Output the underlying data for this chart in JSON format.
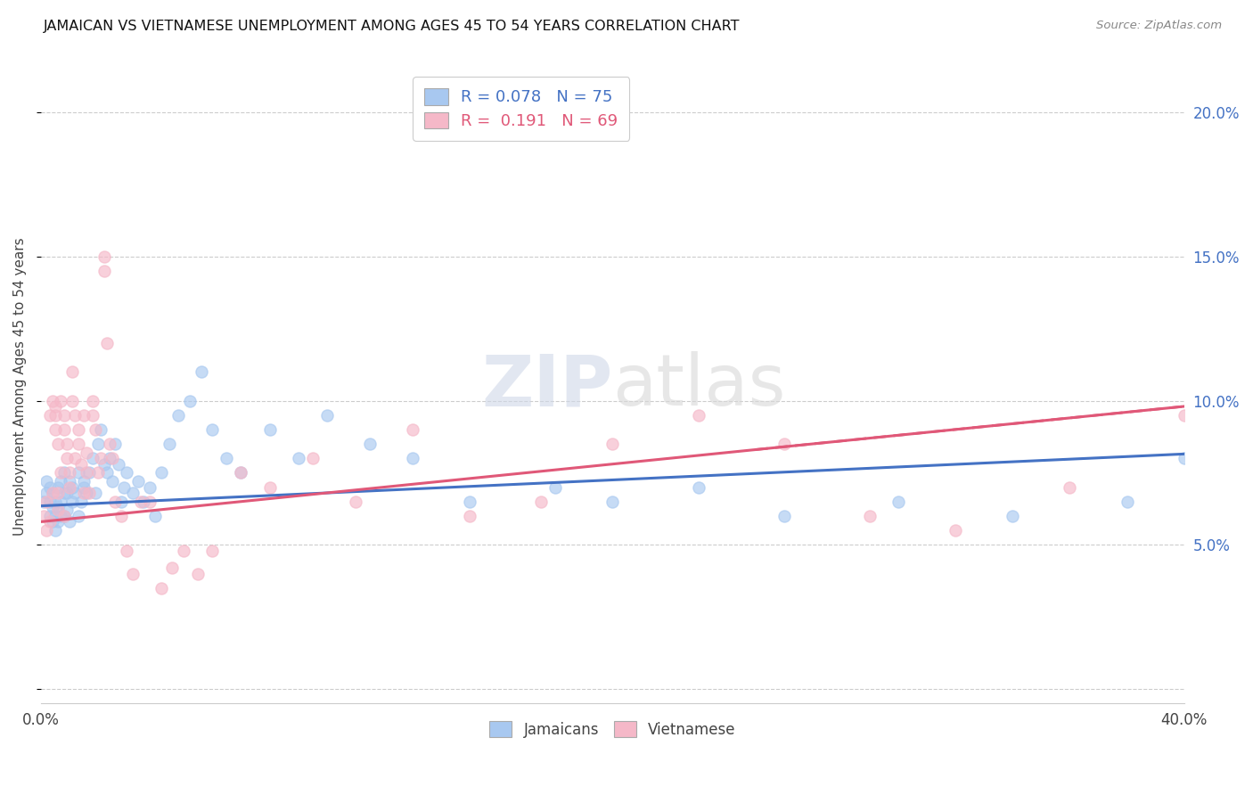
{
  "title": "JAMAICAN VS VIETNAMESE UNEMPLOYMENT AMONG AGES 45 TO 54 YEARS CORRELATION CHART",
  "source": "Source: ZipAtlas.com",
  "ylabel": "Unemployment Among Ages 45 to 54 years",
  "xlim": [
    0.0,
    0.4
  ],
  "ylim": [
    -0.005,
    0.215
  ],
  "xticks": [
    0.0,
    0.05,
    0.1,
    0.15,
    0.2,
    0.25,
    0.3,
    0.35,
    0.4
  ],
  "yticks": [
    0.0,
    0.05,
    0.1,
    0.15,
    0.2
  ],
  "jamaicans_color": "#a8c8f0",
  "vietnamese_color": "#f5b8c8",
  "jamaicans_line_color": "#4472c4",
  "vietnamese_line_color": "#e05878",
  "jamaicans_R": "0.078",
  "jamaicans_N": "75",
  "vietnamese_R": "0.191",
  "vietnamese_N": "69",
  "jamaicans_x": [
    0.001,
    0.002,
    0.002,
    0.003,
    0.003,
    0.003,
    0.004,
    0.004,
    0.004,
    0.005,
    0.005,
    0.005,
    0.006,
    0.006,
    0.006,
    0.007,
    0.007,
    0.007,
    0.008,
    0.008,
    0.008,
    0.009,
    0.009,
    0.01,
    0.01,
    0.011,
    0.011,
    0.012,
    0.013,
    0.013,
    0.014,
    0.015,
    0.015,
    0.016,
    0.017,
    0.018,
    0.019,
    0.02,
    0.021,
    0.022,
    0.023,
    0.024,
    0.025,
    0.026,
    0.027,
    0.028,
    0.029,
    0.03,
    0.032,
    0.034,
    0.036,
    0.038,
    0.04,
    0.042,
    0.045,
    0.048,
    0.052,
    0.056,
    0.06,
    0.065,
    0.07,
    0.08,
    0.09,
    0.1,
    0.115,
    0.13,
    0.15,
    0.18,
    0.2,
    0.23,
    0.26,
    0.3,
    0.34,
    0.38,
    0.4
  ],
  "jamaicans_y": [
    0.065,
    0.068,
    0.072,
    0.06,
    0.065,
    0.07,
    0.058,
    0.063,
    0.068,
    0.055,
    0.06,
    0.065,
    0.058,
    0.063,
    0.07,
    0.06,
    0.065,
    0.072,
    0.068,
    0.06,
    0.075,
    0.062,
    0.068,
    0.058,
    0.072,
    0.065,
    0.07,
    0.068,
    0.06,
    0.075,
    0.065,
    0.07,
    0.072,
    0.068,
    0.075,
    0.08,
    0.068,
    0.085,
    0.09,
    0.078,
    0.075,
    0.08,
    0.072,
    0.085,
    0.078,
    0.065,
    0.07,
    0.075,
    0.068,
    0.072,
    0.065,
    0.07,
    0.06,
    0.075,
    0.085,
    0.095,
    0.1,
    0.11,
    0.09,
    0.08,
    0.075,
    0.09,
    0.08,
    0.095,
    0.085,
    0.08,
    0.065,
    0.07,
    0.065,
    0.07,
    0.06,
    0.065,
    0.06,
    0.065,
    0.08
  ],
  "vietnamese_x": [
    0.001,
    0.002,
    0.002,
    0.003,
    0.003,
    0.004,
    0.004,
    0.005,
    0.005,
    0.005,
    0.006,
    0.006,
    0.006,
    0.007,
    0.007,
    0.008,
    0.008,
    0.008,
    0.009,
    0.009,
    0.01,
    0.01,
    0.011,
    0.011,
    0.012,
    0.012,
    0.013,
    0.013,
    0.014,
    0.015,
    0.015,
    0.016,
    0.016,
    0.017,
    0.018,
    0.018,
    0.019,
    0.02,
    0.021,
    0.022,
    0.022,
    0.023,
    0.024,
    0.025,
    0.026,
    0.028,
    0.03,
    0.032,
    0.035,
    0.038,
    0.042,
    0.046,
    0.05,
    0.055,
    0.06,
    0.07,
    0.08,
    0.095,
    0.11,
    0.13,
    0.15,
    0.175,
    0.2,
    0.23,
    0.26,
    0.29,
    0.32,
    0.36,
    0.4
  ],
  "vietnamese_y": [
    0.06,
    0.055,
    0.065,
    0.058,
    0.095,
    0.1,
    0.068,
    0.09,
    0.095,
    0.098,
    0.062,
    0.068,
    0.085,
    0.075,
    0.1,
    0.06,
    0.09,
    0.095,
    0.08,
    0.085,
    0.07,
    0.075,
    0.1,
    0.11,
    0.095,
    0.08,
    0.09,
    0.085,
    0.078,
    0.095,
    0.068,
    0.075,
    0.082,
    0.068,
    0.1,
    0.095,
    0.09,
    0.075,
    0.08,
    0.145,
    0.15,
    0.12,
    0.085,
    0.08,
    0.065,
    0.06,
    0.048,
    0.04,
    0.065,
    0.065,
    0.035,
    0.042,
    0.048,
    0.04,
    0.048,
    0.075,
    0.07,
    0.08,
    0.065,
    0.09,
    0.06,
    0.065,
    0.085,
    0.095,
    0.085,
    0.06,
    0.055,
    0.07,
    0.095
  ],
  "jamaican_trend_x": [
    0.0,
    0.4
  ],
  "jamaican_trend_y": [
    0.0635,
    0.0815
  ],
  "vietnamese_trend_x": [
    0.0,
    0.4
  ],
  "vietnamese_trend_y": [
    0.058,
    0.098
  ]
}
